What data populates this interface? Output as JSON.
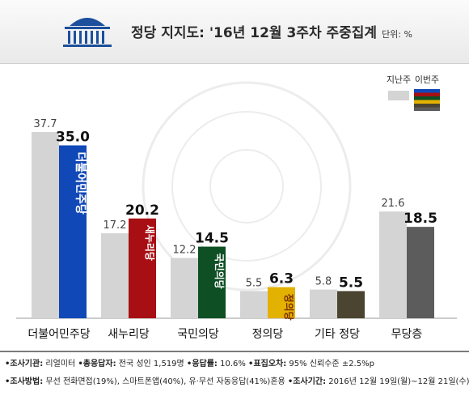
{
  "header": {
    "title": "정당 지지도: '16년 12월 3주차 주중집계",
    "unit": "단위: %"
  },
  "legend": {
    "prev_label": "지난주",
    "curr_label": "이번주"
  },
  "footer": {
    "line1": [
      {
        "k": "•조사기관:",
        "v": " 리얼미터 "
      },
      {
        "k": "•총응답자:",
        "v": " 전국 성인 1,519명 "
      },
      {
        "k": "•응답률:",
        "v": " 10.6% "
      },
      {
        "k": "•표집오차:",
        "v": " 95% 신뢰수준 ±2.5%p"
      }
    ],
    "line2": [
      {
        "k": "•조사방법:",
        "v": " 무선 전화면접(19%), 스마트폰앱(40%), 유·무선 자동응답(41%)혼용 "
      },
      {
        "k": "•조사기간:",
        "v": " 2016년 12월 19일(월)~12월 21일(수)"
      }
    ]
  },
  "chart_data": {
    "type": "bar",
    "title": "정당 지지도: '16년 12월 3주차 주중집계",
    "unit": "%",
    "categories": [
      "더불어민주당",
      "새누리당",
      "국민의당",
      "정의당",
      "기타 정당",
      "무당층"
    ],
    "series": [
      {
        "name": "지난주",
        "values": [
          37.7,
          17.2,
          12.2,
          5.5,
          5.8,
          21.6
        ]
      },
      {
        "name": "이번주",
        "values": [
          35.0,
          20.2,
          14.5,
          6.3,
          5.5,
          18.5
        ]
      }
    ],
    "colors": {
      "prev": "#d4d4d4",
      "curr": [
        "#1148b8",
        "#a80f14",
        "#0e4f24",
        "#e3b100",
        "#4a4430",
        "#5c5c5c"
      ]
    },
    "bar_logo_text": [
      "더불어민주당",
      "새누리당",
      "국민의당",
      "정의당",
      "",
      ""
    ],
    "ylim": [
      0,
      40
    ],
    "legend_position": "top-right",
    "grid": false
  }
}
